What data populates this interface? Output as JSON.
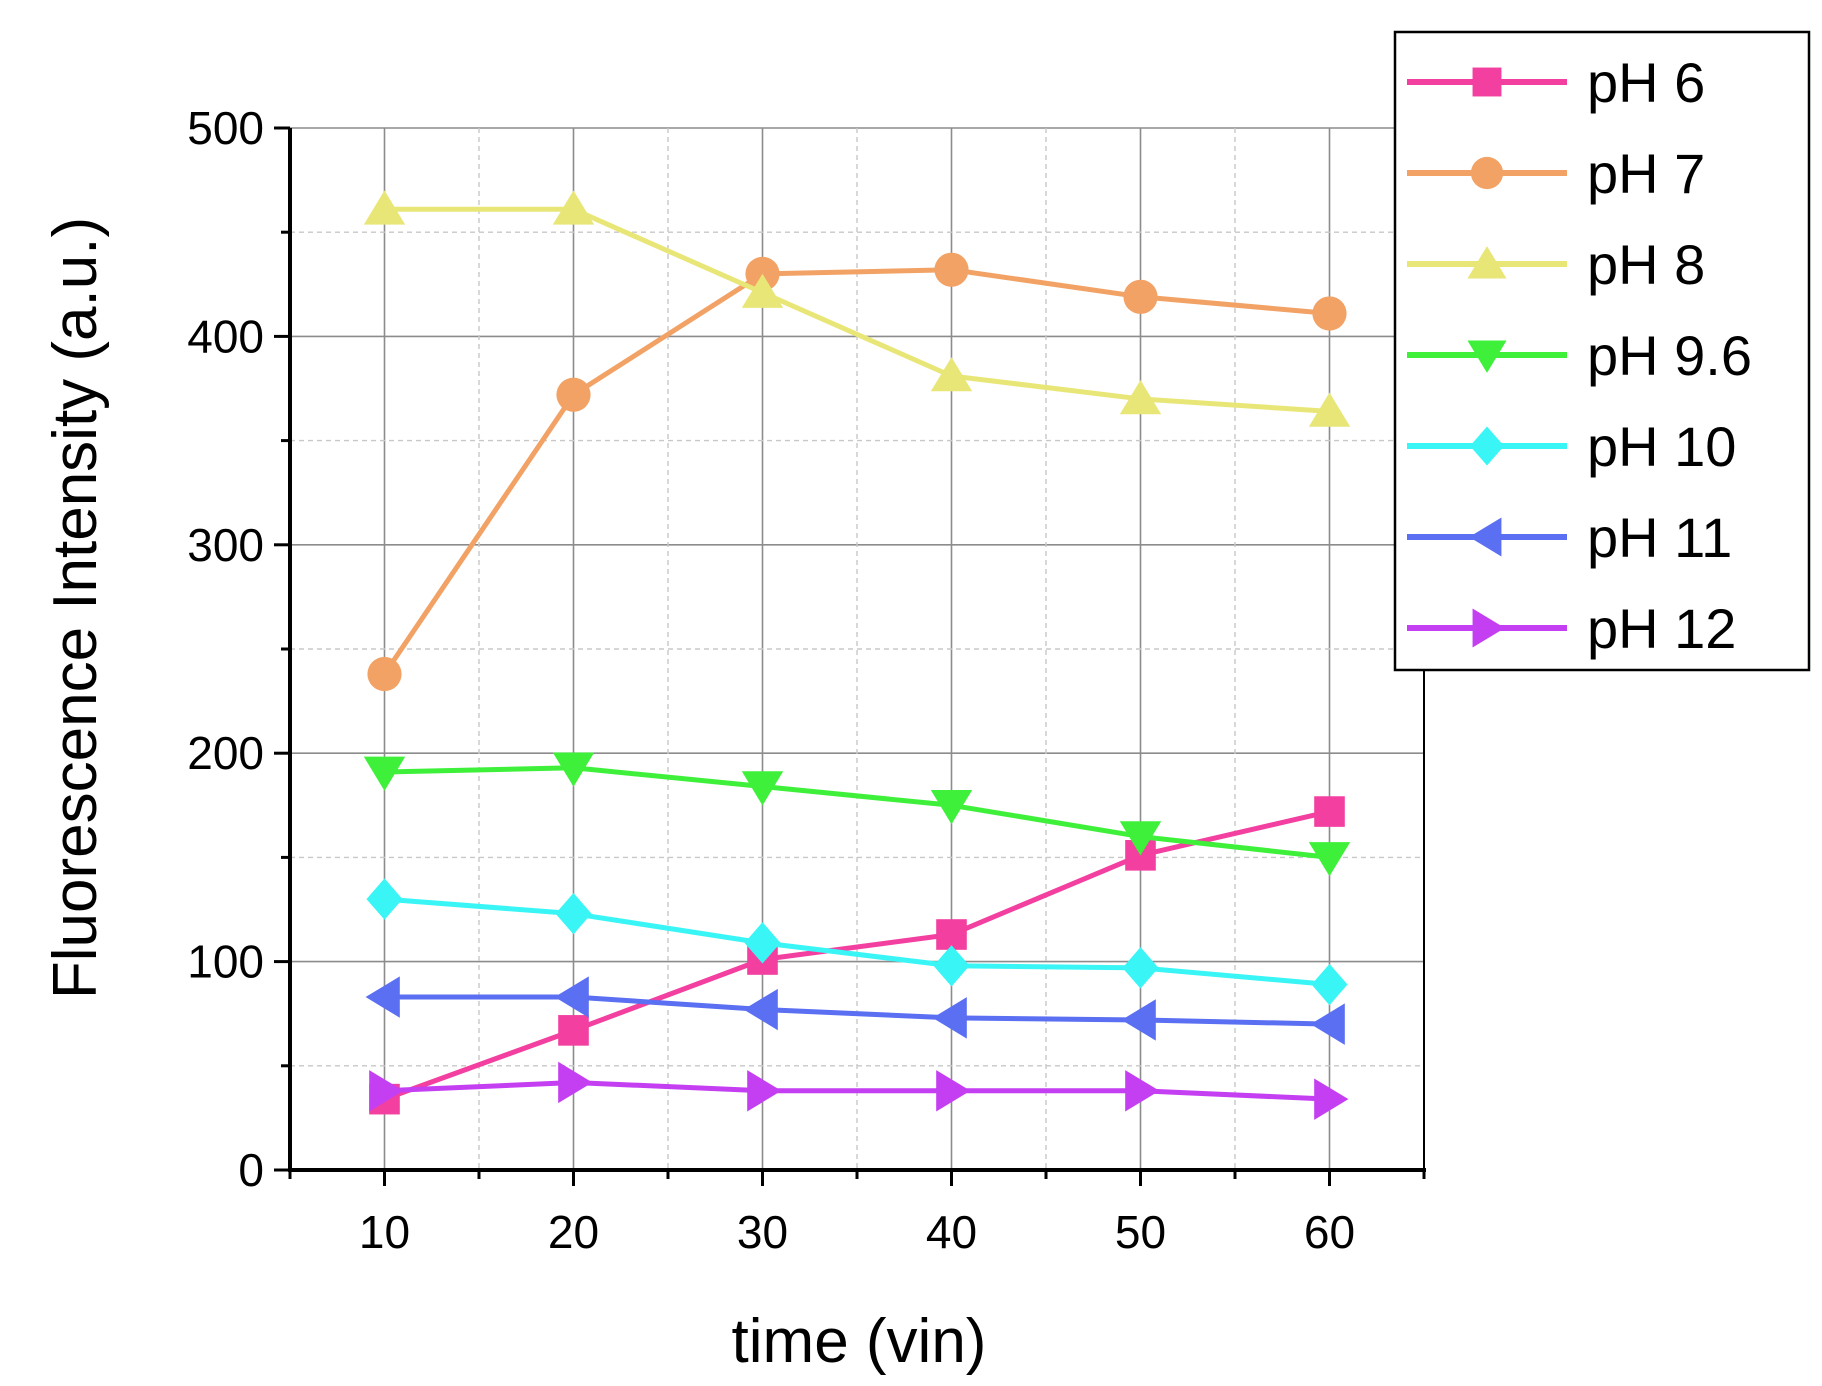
{
  "chart_data": {
    "type": "line",
    "title": "",
    "xlabel": "time (vin)",
    "ylabel": "Fluorescence Intensity (a.u.)",
    "xlim": [
      5,
      65
    ],
    "ylim": [
      0,
      500
    ],
    "grid": true,
    "legend_position": "top-right outside",
    "x": [
      10,
      20,
      30,
      40,
      50,
      60
    ],
    "x_ticks": [
      "10",
      "20",
      "30",
      "40",
      "50",
      "60"
    ],
    "y_ticks": [
      "0",
      "100",
      "200",
      "300",
      "400",
      "500"
    ],
    "x_tick_values": [
      10,
      20,
      30,
      40,
      50,
      60
    ],
    "y_tick_values": [
      0,
      100,
      200,
      300,
      400,
      500
    ],
    "series": [
      {
        "name": "pH 6",
        "marker": "square",
        "color": "#F23FA0",
        "values": [
          34,
          67,
          101,
          113,
          151,
          172
        ]
      },
      {
        "name": "pH 7",
        "marker": "circle",
        "color": "#F2A265",
        "values": [
          238,
          372,
          430,
          432,
          419,
          411
        ]
      },
      {
        "name": "pH 8",
        "marker": "triangle-up",
        "color": "#E9E678",
        "values": [
          461,
          461,
          421,
          381,
          370,
          364
        ]
      },
      {
        "name": "pH 9.6",
        "marker": "triangle-down",
        "color": "#3EF03A",
        "values": [
          191,
          193,
          184,
          175,
          160,
          150
        ]
      },
      {
        "name": "pH 10",
        "marker": "diamond",
        "color": "#3AF5F5",
        "values": [
          130,
          123,
          109,
          98,
          97,
          89
        ]
      },
      {
        "name": "pH 11",
        "marker": "triangle-left",
        "color": "#5B6FF2",
        "values": [
          83,
          83,
          77,
          73,
          72,
          70
        ]
      },
      {
        "name": "pH 12",
        "marker": "triangle-right",
        "color": "#C43EF2",
        "values": [
          38,
          42,
          38,
          38,
          38,
          34
        ]
      }
    ]
  }
}
